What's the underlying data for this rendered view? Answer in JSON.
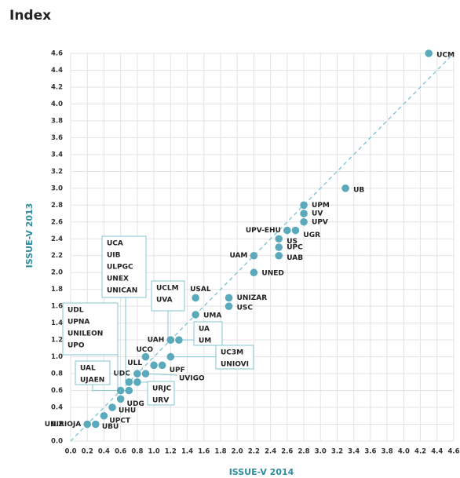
{
  "chart_data": {
    "type": "scatter",
    "title": "Index",
    "xlabel": "ISSUE-V 2014",
    "ylabel": "ISSUE-V 2013",
    "xlim": [
      0,
      4.6
    ],
    "ylim": [
      0,
      4.6
    ],
    "grid": true,
    "color": "#5aaabb",
    "xticks": [
      {
        "value": 0,
        "label": "0.0"
      },
      {
        "value": 0.2,
        "label": "0.2"
      },
      {
        "value": 0.4,
        "label": "0.4"
      },
      {
        "value": 0.6,
        "label": "0.6"
      },
      {
        "value": 0.8,
        "label": "0.8"
      },
      {
        "value": 1,
        "label": "1.0"
      },
      {
        "value": 1.2,
        "label": "1.2"
      },
      {
        "value": 1.4,
        "label": "1.4"
      },
      {
        "value": 1.6,
        "label": "1.6"
      },
      {
        "value": 1.8,
        "label": "1.8"
      },
      {
        "value": 2,
        "label": "2.0"
      },
      {
        "value": 2.2,
        "label": "2.2"
      },
      {
        "value": 2.4,
        "label": "2.4"
      },
      {
        "value": 2.6,
        "label": "2.6"
      },
      {
        "value": 2.8,
        "label": "2.8"
      },
      {
        "value": 3,
        "label": "3.0"
      },
      {
        "value": 3.2,
        "label": "3.2"
      },
      {
        "value": 3.4,
        "label": "3.4"
      },
      {
        "value": 3.6,
        "label": "3.6"
      },
      {
        "value": 3.8,
        "label": "3.8"
      },
      {
        "value": 4,
        "label": "4.0"
      },
      {
        "value": 4.2,
        "label": "4.2"
      },
      {
        "value": 4.4,
        "label": "4.4"
      },
      {
        "value": 4.6,
        "label": "4.6"
      }
    ],
    "yticks": [
      {
        "value": 0,
        "label": "0.0"
      },
      {
        "value": 0.2,
        "label": "0.2"
      },
      {
        "value": 0.4,
        "label": "0.4"
      },
      {
        "value": 0.6,
        "label": "0.6"
      },
      {
        "value": 0.8,
        "label": "0.8"
      },
      {
        "value": 1,
        "label": "1.0"
      },
      {
        "value": 1.2,
        "label": "1.2"
      },
      {
        "value": 1.4,
        "label": "1.4"
      },
      {
        "value": 1.6,
        "label": "1.6"
      },
      {
        "value": 1.8,
        "label": "1.8"
      },
      {
        "value": 2,
        "label": "2.0"
      },
      {
        "value": 2.2,
        "label": "2.2"
      },
      {
        "value": 2.4,
        "label": "2.4"
      },
      {
        "value": 2.6,
        "label": "2.6"
      },
      {
        "value": 2.8,
        "label": "2.8"
      },
      {
        "value": 3,
        "label": "3.0"
      },
      {
        "value": 3.2,
        "label": "3.2"
      },
      {
        "value": 3.4,
        "label": "3.4"
      },
      {
        "value": 3.6,
        "label": "3.6"
      },
      {
        "value": 3.8,
        "label": "3.8"
      },
      {
        "value": 4,
        "label": "4.0"
      },
      {
        "value": 4.2,
        "label": "4.2"
      },
      {
        "value": 4.4,
        "label": "4.4"
      },
      {
        "value": 4.6,
        "label": "4.6"
      }
    ],
    "points": [
      {
        "x": 4.3,
        "y": 4.6,
        "labels": [
          "UCM"
        ]
      },
      {
        "x": 3.3,
        "y": 3.0,
        "labels": [
          "UB"
        ]
      },
      {
        "x": 2.8,
        "y": 2.8,
        "labels": [
          "UPM"
        ]
      },
      {
        "x": 2.8,
        "y": 2.7,
        "labels": [
          "UV"
        ]
      },
      {
        "x": 2.8,
        "y": 2.6,
        "labels": [
          "UPV"
        ]
      },
      {
        "x": 2.6,
        "y": 2.5,
        "labels": [
          "UPV-EHU"
        ]
      },
      {
        "x": 2.7,
        "y": 2.5,
        "labels": [
          "UGR"
        ]
      },
      {
        "x": 2.5,
        "y": 2.4,
        "labels": [
          "US"
        ]
      },
      {
        "x": 2.5,
        "y": 2.3,
        "labels": [
          "UPC"
        ]
      },
      {
        "x": 2.5,
        "y": 2.2,
        "labels": [
          "UAB"
        ]
      },
      {
        "x": 2.2,
        "y": 2.2,
        "labels": [
          "UAM"
        ]
      },
      {
        "x": 2.2,
        "y": 2.0,
        "labels": [
          "UNED"
        ]
      },
      {
        "x": 1.5,
        "y": 1.7,
        "labels": [
          "USAL"
        ]
      },
      {
        "x": 1.9,
        "y": 1.7,
        "labels": [
          "UNIZAR"
        ]
      },
      {
        "x": 1.9,
        "y": 1.6,
        "labels": [
          "USC"
        ]
      },
      {
        "x": 1.5,
        "y": 1.5,
        "labels": [
          "UMA"
        ]
      },
      {
        "x": 1.2,
        "y": 1.2,
        "labels": [
          "UAH"
        ]
      },
      {
        "x": 1.2,
        "y": 1.2,
        "labels": [
          "UCLM",
          "UVA"
        ]
      },
      {
        "x": 1.3,
        "y": 1.2,
        "labels": [
          "UA",
          "UM"
        ]
      },
      {
        "x": 0.9,
        "y": 1.0,
        "labels": [
          "UCO"
        ]
      },
      {
        "x": 1.2,
        "y": 1.0,
        "labels": [
          "UC3M",
          "UNIOVI"
        ]
      },
      {
        "x": 1.0,
        "y": 0.9,
        "labels": [
          "ULL"
        ]
      },
      {
        "x": 1.1,
        "y": 0.9,
        "labels": [
          "UPF"
        ]
      },
      {
        "x": 0.8,
        "y": 0.8,
        "labels": [
          "UDC"
        ]
      },
      {
        "x": 0.9,
        "y": 0.8,
        "labels": [
          "UVIGO"
        ]
      },
      {
        "x": 0.7,
        "y": 0.7,
        "labels": [
          "UCA",
          "UIB",
          "ULPGC",
          "UNEX",
          "UNICAN"
        ]
      },
      {
        "x": 0.8,
        "y": 0.7,
        "labels": [
          "URJC",
          "URV"
        ]
      },
      {
        "x": 0.6,
        "y": 0.6,
        "labels": [
          "UAL",
          "UJAEN"
        ]
      },
      {
        "x": 0.7,
        "y": 0.6,
        "labels": [
          "UDL",
          "UPNA",
          "UNILEON",
          "UPO"
        ]
      },
      {
        "x": 0.6,
        "y": 0.5,
        "labels": [
          "UDG"
        ]
      },
      {
        "x": 0.5,
        "y": 0.4,
        "labels": [
          "UHU"
        ]
      },
      {
        "x": 0.4,
        "y": 0.3,
        "labels": [
          "UPCT"
        ]
      },
      {
        "x": 0.2,
        "y": 0.2,
        "labels": [
          "UNIRIOJA"
        ]
      },
      {
        "x": 0.3,
        "y": 0.2,
        "labels": [
          "UBU"
        ]
      }
    ]
  }
}
